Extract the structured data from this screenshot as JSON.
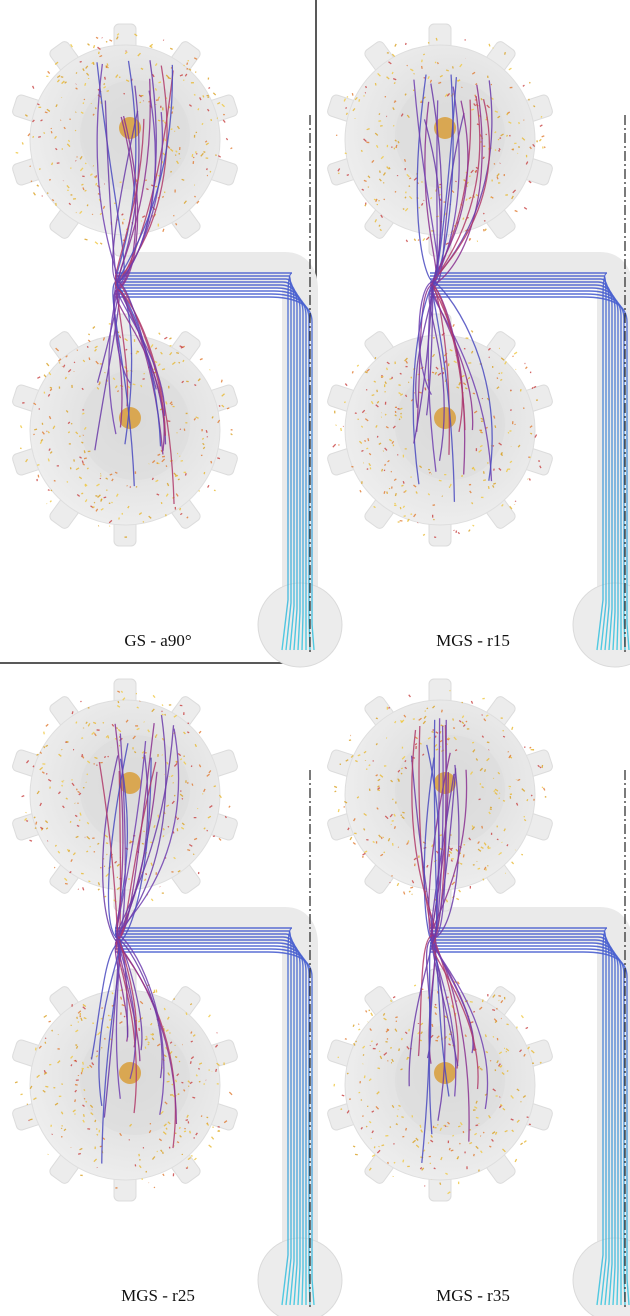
{
  "panels": [
    {
      "label": "GS - a90°"
    },
    {
      "label": "MGS - r15"
    },
    {
      "label": "MGS - r25"
    },
    {
      "label": "MGS - r35"
    }
  ]
}
